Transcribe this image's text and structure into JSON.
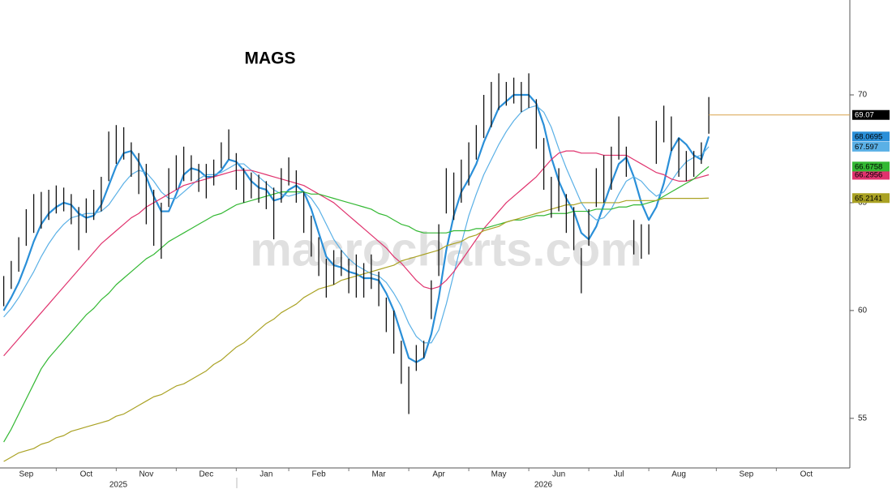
{
  "chart_data": {
    "type": "ohlc",
    "title": "MAGS",
    "watermark": "macrocharts.com",
    "categories": [
      null,
      null,
      null,
      "Sep",
      null,
      null,
      null,
      null,
      null,
      null,
      null,
      "Oct",
      null,
      null,
      null,
      null,
      null,
      null,
      null,
      "Nov",
      null,
      null,
      null,
      null,
      null,
      null,
      null,
      "Dec",
      null,
      null,
      null,
      null,
      null,
      null,
      null,
      "Jan",
      null,
      null,
      null,
      null,
      null,
      null,
      "Feb",
      null,
      null,
      null,
      null,
      null,
      null,
      null,
      "Mar",
      null,
      null,
      null,
      null,
      null,
      null,
      null,
      "Apr",
      null,
      null,
      null,
      null,
      null,
      null,
      null,
      "May",
      null,
      null,
      null,
      null,
      null,
      null,
      null,
      "Jun",
      null,
      null,
      null,
      null,
      null,
      null,
      null,
      "Jul",
      null,
      null,
      null,
      null,
      null,
      null,
      null,
      "Aug",
      null,
      null,
      null,
      null,
      null,
      null,
      null,
      null,
      "Sep",
      null,
      null,
      null,
      null,
      null,
      null,
      null,
      "Oct",
      null,
      null,
      null,
      null,
      null
    ],
    "years": [
      "2025",
      "2026"
    ],
    "ohlc": {
      "color": "#111111",
      "high": [
        61.6,
        62.3,
        63.4,
        64.7,
        65.4,
        65.5,
        65.6,
        65.8,
        65.7,
        65.4,
        64.8,
        65.2,
        65.6,
        66.2,
        68.3,
        68.6,
        68.5,
        67.8,
        67.3,
        66.8,
        65.6,
        65.0,
        66.6,
        67.2,
        67.6,
        67.2,
        66.8,
        66.8,
        67.0,
        67.8,
        68.4,
        67.3,
        66.6,
        66.4,
        66.3,
        66.0,
        65.7,
        66.6,
        67.1,
        66.5,
        65.5,
        64.4,
        63.4,
        62.4,
        62.8,
        62.8,
        62.4,
        62.6,
        62.2,
        62.6,
        61.8,
        60.6,
        60.0,
        58.6,
        57.4,
        58.4,
        58.6,
        61.4,
        64.0,
        66.6,
        66.4,
        67.0,
        67.8,
        68.6,
        70.0,
        70.6,
        71.0,
        70.6,
        70.8,
        70.6,
        71.0,
        69.8,
        68.0,
        66.2,
        66.6,
        65.4,
        64.8,
        62.9,
        64.7,
        66.6,
        67.2,
        67.6,
        69.0,
        67.6,
        64.2,
        64.0,
        64.0,
        68.8,
        69.5,
        69.0,
        68.0,
        67.4,
        67.4,
        67.8,
        69.9,
        null,
        null,
        null,
        null,
        null,
        null,
        null,
        null,
        null,
        null,
        null,
        null,
        null,
        null,
        null,
        null,
        null,
        null
      ],
      "low": [
        60.2,
        61.0,
        61.8,
        63.0,
        63.6,
        63.8,
        64.2,
        64.5,
        64.6,
        64.0,
        62.8,
        63.6,
        64.2,
        64.6,
        66.0,
        66.8,
        67.0,
        66.2,
        65.4,
        64.0,
        63.0,
        62.4,
        64.8,
        65.6,
        66.0,
        66.0,
        65.5,
        65.2,
        65.8,
        66.6,
        67.0,
        65.6,
        65.0,
        65.2,
        65.0,
        64.7,
        63.3,
        65.0,
        65.8,
        65.0,
        63.6,
        62.5,
        61.6,
        60.6,
        61.2,
        61.6,
        60.8,
        60.6,
        60.6,
        61.0,
        60.2,
        59.0,
        58.0,
        56.6,
        55.2,
        57.2,
        57.8,
        59.6,
        61.6,
        64.5,
        64.2,
        65.0,
        65.8,
        67.0,
        68.0,
        68.5,
        69.3,
        69.5,
        69.6,
        69.2,
        69.4,
        67.5,
        65.6,
        64.3,
        64.6,
        63.6,
        62.8,
        60.8,
        63.0,
        64.8,
        65.0,
        65.6,
        67.0,
        66.2,
        62.6,
        62.4,
        62.6,
        66.8,
        67.8,
        67.4,
        66.2,
        66.0,
        66.2,
        66.8,
        68.2,
        null,
        null,
        null,
        null,
        null,
        null,
        null,
        null,
        null,
        null,
        null,
        null,
        null,
        null,
        null,
        null,
        null,
        null
      ]
    },
    "last_price": 69.07,
    "last_price_color": "#000000",
    "last_line_color": "#d9a24a",
    "series": [
      {
        "color": "#2a8fd8",
        "line_width": 2.2,
        "values": [
          60.0,
          60.6,
          61.3,
          62.2,
          63.2,
          64.0,
          64.5,
          64.8,
          65.0,
          64.9,
          64.5,
          64.3,
          64.4,
          64.9,
          65.8,
          66.7,
          67.3,
          67.4,
          66.9,
          66.2,
          65.3,
          64.6,
          64.6,
          65.4,
          66.3,
          66.6,
          66.5,
          66.2,
          66.2,
          66.5,
          67.0,
          66.9,
          66.5,
          66.0,
          65.7,
          65.6,
          65.1,
          65.2,
          65.6,
          65.8,
          65.5,
          64.7,
          63.6,
          62.5,
          62.1,
          62.0,
          61.8,
          61.7,
          61.5,
          61.5,
          61.4,
          60.8,
          60.0,
          58.9,
          57.8,
          57.6,
          57.8,
          58.9,
          60.6,
          62.8,
          64.4,
          65.5,
          66.1,
          66.8,
          67.8,
          68.6,
          69.4,
          69.7,
          70.0,
          70.0,
          70.0,
          69.6,
          68.6,
          67.1,
          66.0,
          65.2,
          64.6,
          63.6,
          63.3,
          63.9,
          64.9,
          65.9,
          66.8,
          67.1,
          66.2,
          65.0,
          64.2,
          64.8,
          65.9,
          67.4,
          68.0,
          67.7,
          67.2,
          67.0,
          68.0695,
          null,
          null,
          null,
          null,
          null,
          null,
          null,
          null,
          null,
          null,
          null,
          null,
          null,
          null,
          null,
          null,
          null,
          null
        ]
      },
      {
        "color": "#5ab0e6",
        "line_width": 1.2,
        "values": [
          59.7,
          60.1,
          60.6,
          61.2,
          61.8,
          62.5,
          63.1,
          63.6,
          64.0,
          64.3,
          64.4,
          64.5,
          64.5,
          64.6,
          64.9,
          65.4,
          65.9,
          66.3,
          66.5,
          66.4,
          66.0,
          65.5,
          65.2,
          65.2,
          65.5,
          65.8,
          66.1,
          66.3,
          66.3,
          66.4,
          66.6,
          66.8,
          66.8,
          66.5,
          66.2,
          65.9,
          65.6,
          65.4,
          65.3,
          65.4,
          65.5,
          65.2,
          64.7,
          64.0,
          63.3,
          62.8,
          62.4,
          62.1,
          61.9,
          61.7,
          61.6,
          61.3,
          60.8,
          60.2,
          59.4,
          58.8,
          58.5,
          58.5,
          59.1,
          60.3,
          61.7,
          63.1,
          64.4,
          65.4,
          66.3,
          67.0,
          67.7,
          68.3,
          68.8,
          69.2,
          69.4,
          69.5,
          69.2,
          68.5,
          67.5,
          66.6,
          65.8,
          65.0,
          64.5,
          64.2,
          64.3,
          64.7,
          65.4,
          66.0,
          66.2,
          66.0,
          65.6,
          65.3,
          65.5,
          66.0,
          66.5,
          66.9,
          67.1,
          67.2,
          67.597,
          null,
          null,
          null,
          null,
          null,
          null,
          null,
          null,
          null,
          null,
          null,
          null,
          null,
          null,
          null,
          null,
          null,
          null
        ]
      },
      {
        "color": "#e0336e",
        "line_width": 1.2,
        "values": [
          57.9,
          58.3,
          58.7,
          59.1,
          59.5,
          59.9,
          60.3,
          60.7,
          61.1,
          61.5,
          61.9,
          62.3,
          62.7,
          63.1,
          63.4,
          63.7,
          64.0,
          64.3,
          64.5,
          64.8,
          65.0,
          65.2,
          65.4,
          65.6,
          65.8,
          65.9,
          66.0,
          66.1,
          66.2,
          66.3,
          66.4,
          66.5,
          66.5,
          66.5,
          66.4,
          66.3,
          66.2,
          66.1,
          66.0,
          65.9,
          65.8,
          65.6,
          65.4,
          65.2,
          65.0,
          64.7,
          64.4,
          64.1,
          63.8,
          63.5,
          63.2,
          62.9,
          62.5,
          62.2,
          61.8,
          61.4,
          61.1,
          61.0,
          61.1,
          61.4,
          61.8,
          62.3,
          62.8,
          63.3,
          63.8,
          64.2,
          64.6,
          65.0,
          65.3,
          65.6,
          65.9,
          66.2,
          66.6,
          67.0,
          67.3,
          67.4,
          67.4,
          67.3,
          67.3,
          67.3,
          67.2,
          67.2,
          67.2,
          67.2,
          67.0,
          66.8,
          66.6,
          66.4,
          66.3,
          66.1,
          66.0,
          66.0,
          66.1,
          66.2,
          66.2956,
          null,
          null,
          null,
          null,
          null,
          null,
          null,
          null,
          null,
          null,
          null,
          null,
          null,
          null,
          null,
          null,
          null,
          null
        ]
      },
      {
        "color": "#33b833",
        "line_width": 1.2,
        "values": [
          53.9,
          54.5,
          55.2,
          55.9,
          56.6,
          57.3,
          57.8,
          58.2,
          58.6,
          59.0,
          59.4,
          59.8,
          60.1,
          60.5,
          60.8,
          61.2,
          61.5,
          61.8,
          62.1,
          62.4,
          62.6,
          62.9,
          63.2,
          63.4,
          63.6,
          63.8,
          64.0,
          64.2,
          64.4,
          64.5,
          64.7,
          64.9,
          65.0,
          65.1,
          65.2,
          65.3,
          65.4,
          65.5,
          65.5,
          65.5,
          65.5,
          65.4,
          65.4,
          65.3,
          65.2,
          65.1,
          65.0,
          64.9,
          64.8,
          64.7,
          64.5,
          64.4,
          64.2,
          64.0,
          63.9,
          63.7,
          63.6,
          63.6,
          63.6,
          63.6,
          63.7,
          63.7,
          63.7,
          63.8,
          63.8,
          63.9,
          64.0,
          64.1,
          64.2,
          64.2,
          64.3,
          64.4,
          64.4,
          64.5,
          64.5,
          64.5,
          64.6,
          64.6,
          64.6,
          64.7,
          64.7,
          64.7,
          64.8,
          64.8,
          64.9,
          64.9,
          65.0,
          65.1,
          65.3,
          65.5,
          65.7,
          65.9,
          66.1,
          66.4,
          66.6758,
          null,
          null,
          null,
          null,
          null,
          null,
          null,
          null,
          null,
          null,
          null,
          null,
          null,
          null,
          null,
          null,
          null,
          null
        ]
      },
      {
        "color": "#aaa224",
        "line_width": 1.2,
        "values": [
          53.0,
          53.2,
          53.4,
          53.5,
          53.6,
          53.8,
          53.9,
          54.1,
          54.2,
          54.4,
          54.5,
          54.6,
          54.7,
          54.8,
          54.9,
          55.1,
          55.2,
          55.4,
          55.6,
          55.8,
          56.0,
          56.1,
          56.3,
          56.5,
          56.6,
          56.8,
          57.0,
          57.2,
          57.5,
          57.7,
          58.0,
          58.3,
          58.5,
          58.8,
          59.1,
          59.4,
          59.6,
          59.9,
          60.1,
          60.3,
          60.6,
          60.8,
          61.0,
          61.1,
          61.2,
          61.4,
          61.5,
          61.6,
          61.7,
          61.8,
          61.9,
          62.0,
          62.1,
          62.3,
          62.4,
          62.5,
          62.6,
          62.7,
          62.8,
          63.0,
          63.1,
          63.2,
          63.4,
          63.5,
          63.7,
          63.8,
          63.9,
          64.1,
          64.2,
          64.3,
          64.4,
          64.5,
          64.6,
          64.7,
          64.8,
          64.9,
          64.9,
          65.0,
          65.0,
          65.0,
          65.0,
          65.0,
          65.0,
          65.1,
          65.1,
          65.1,
          65.1,
          65.1,
          65.2,
          65.2,
          65.2,
          65.2,
          65.2,
          65.2,
          65.2141,
          null,
          null,
          null,
          null,
          null,
          null,
          null,
          null,
          null,
          null,
          null,
          null,
          null,
          null,
          null,
          null,
          null,
          null
        ]
      }
    ],
    "ylim": [
      52.7,
      74.4
    ],
    "yticks": [
      55,
      60,
      65,
      70
    ]
  }
}
